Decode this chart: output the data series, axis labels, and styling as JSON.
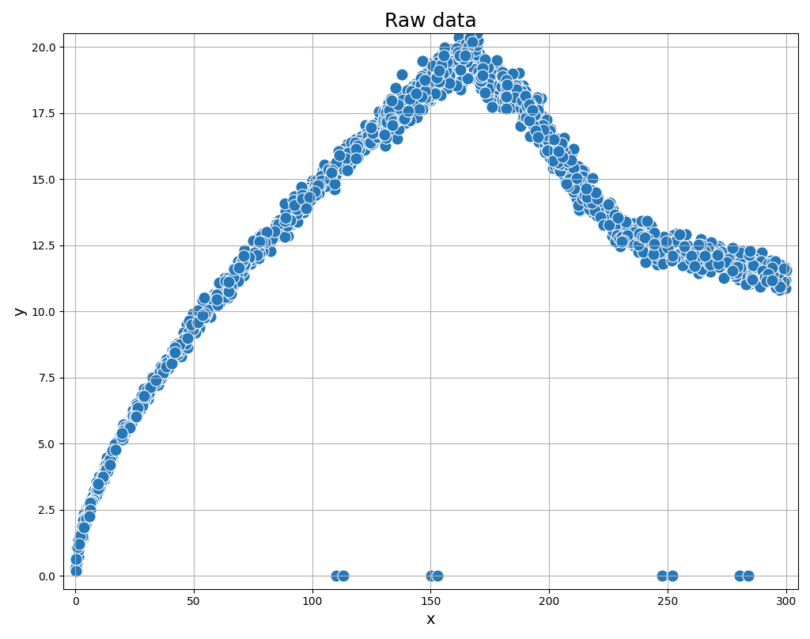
{
  "title": "Raw data",
  "xlabel": "x",
  "ylabel": "y",
  "dot_color": "#2677b8",
  "dot_size": 120,
  "dot_alpha": 1.0,
  "seed": 42,
  "background_color": "#ffffff",
  "grid_color": "#b0b0b0",
  "title_fontsize": 18,
  "label_fontsize": 14,
  "outlier_x": [
    110,
    113,
    150,
    153,
    248,
    252,
    280,
    284
  ],
  "outlier_y": [
    0.0,
    0.0,
    0.0,
    0.0,
    0.0,
    0.0,
    0.0,
    0.0
  ]
}
